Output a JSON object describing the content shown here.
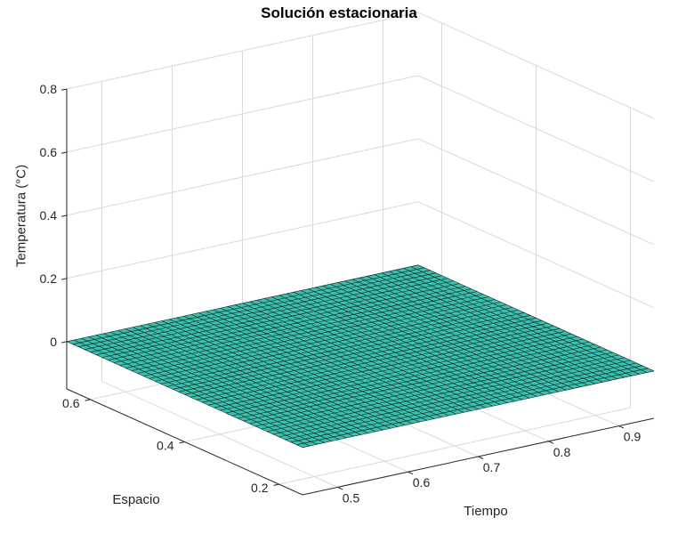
{
  "chart_data": {
    "type": "surface",
    "title": "Solución estacionaria",
    "xlabel": "Tiempo",
    "ylabel": "Espacio",
    "zlabel": "Temperatura (°C)",
    "xlim": [
      0.45,
      0.95
    ],
    "ylim": [
      0.15,
      0.65
    ],
    "zlim": [
      -0.15,
      0.8
    ],
    "xticks": [
      0.5,
      0.6,
      0.7,
      0.8,
      0.9
    ],
    "yticks": [
      0.2,
      0.4,
      0.6
    ],
    "zticks": [
      0,
      0.2,
      0.4,
      0.6,
      0.8
    ],
    "grid": true,
    "view": "3d, azimuth -37.5, elevation 30",
    "surface": {
      "description": "Flat stationary-solution mesh surface: temperature = 0 °C everywhere over the time–space grid",
      "z_value": 0,
      "x_range": [
        0.45,
        0.95
      ],
      "y_range": [
        0.15,
        0.65
      ],
      "mesh_nx": 48,
      "mesh_ny": 40,
      "fill_color": "#3bc0ae",
      "edge_color": "#000000"
    },
    "colors": {
      "axis": "#262626",
      "text": "#262626",
      "wall_grid": "#d9d9d9",
      "background": "#ffffff"
    }
  }
}
